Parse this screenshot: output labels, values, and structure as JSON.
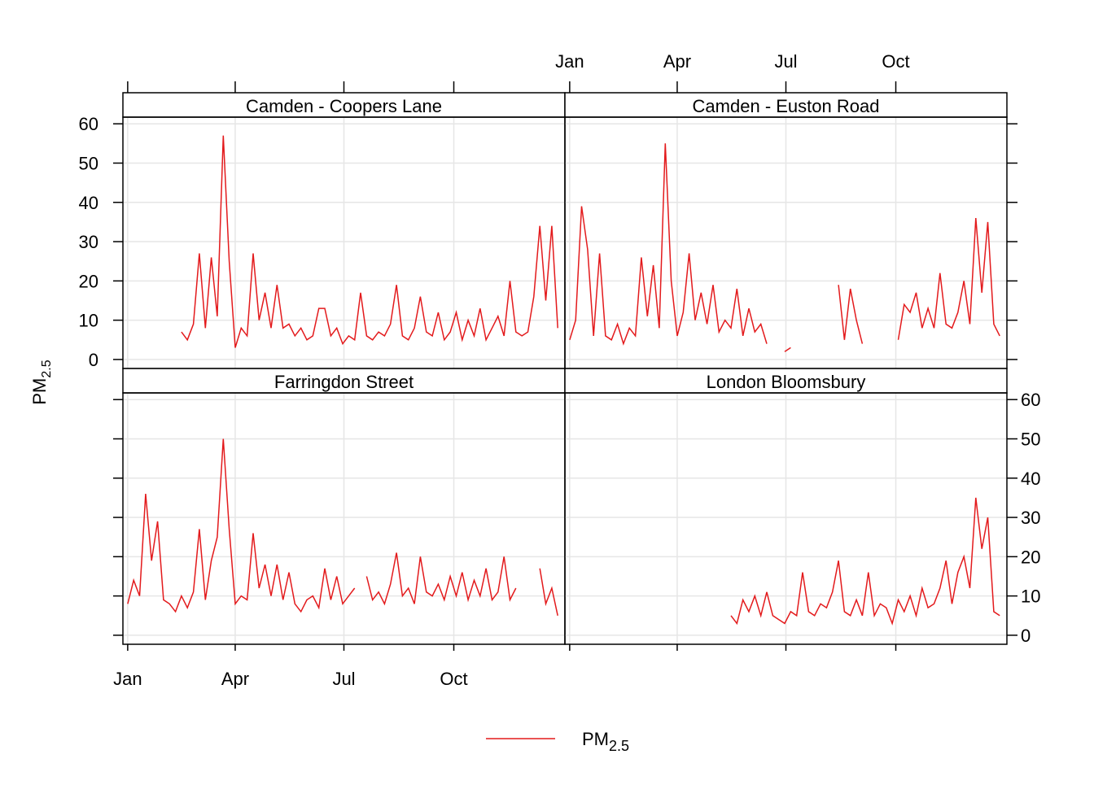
{
  "chart_data": {
    "type": "line",
    "ylabel": "PM",
    "ylabel_sub": "2.5",
    "series_name": "PM",
    "series_name_sub": "2.5",
    "color": "#e31a1c",
    "grid": true,
    "xlim": [
      -3,
      367
    ],
    "xticks": [
      {
        "value": 1,
        "label": "Jan"
      },
      {
        "value": 91,
        "label": "Apr"
      },
      {
        "value": 182,
        "label": "Jul"
      },
      {
        "value": 274,
        "label": "Oct"
      }
    ],
    "ylim": [
      -2.3,
      61.7
    ],
    "yticks": [
      0,
      10,
      20,
      30,
      40,
      50,
      60
    ],
    "x": [
      1,
      6,
      11,
      16,
      21,
      26,
      31,
      36,
      41,
      46,
      51,
      56,
      61,
      66,
      71,
      76,
      81,
      86,
      91,
      96,
      101,
      106,
      111,
      116,
      121,
      126,
      131,
      136,
      141,
      146,
      151,
      156,
      161,
      166,
      171,
      176,
      181,
      186,
      191,
      196,
      201,
      206,
      211,
      216,
      221,
      226,
      231,
      236,
      241,
      246,
      251,
      256,
      261,
      266,
      271,
      276,
      281,
      286,
      291,
      296,
      301,
      306,
      311,
      316,
      321,
      326,
      331,
      336,
      341,
      346,
      351,
      356,
      361
    ],
    "panels": [
      {
        "title": "Camden - Coopers Lane",
        "values": [
          null,
          null,
          null,
          null,
          null,
          null,
          null,
          null,
          null,
          7,
          5,
          9,
          27,
          8,
          26,
          11,
          57,
          25,
          3,
          8,
          6,
          27,
          10,
          17,
          8,
          19,
          8,
          9,
          6,
          8,
          5,
          6,
          13,
          13,
          6,
          8,
          4,
          6,
          5,
          17,
          6,
          5,
          7,
          6,
          9,
          19,
          6,
          5,
          8,
          16,
          7,
          6,
          12,
          5,
          7,
          12,
          5,
          10,
          6,
          13,
          5,
          8,
          11,
          6,
          20,
          7,
          6,
          7,
          16,
          34,
          15,
          34,
          8
        ]
      },
      {
        "title": "Camden - Euston Road",
        "values": [
          5,
          10,
          39,
          28,
          6,
          27,
          6,
          5,
          9,
          4,
          8,
          6,
          26,
          11,
          24,
          8,
          55,
          20,
          6,
          12,
          27,
          10,
          17,
          9,
          19,
          7,
          10,
          8,
          18,
          6,
          13,
          7,
          9,
          4,
          null,
          null,
          2,
          3,
          null,
          null,
          null,
          null,
          null,
          null,
          null,
          19,
          5,
          18,
          10,
          4,
          null,
          null,
          null,
          null,
          null,
          5,
          14,
          12,
          17,
          8,
          13,
          8,
          22,
          9,
          8,
          12,
          20,
          9,
          36,
          17,
          35,
          9,
          6
        ]
      },
      {
        "title": "Farringdon Street",
        "values": [
          8,
          14,
          10,
          36,
          19,
          29,
          9,
          8,
          6,
          10,
          7,
          11,
          27,
          9,
          19,
          25,
          50,
          27,
          8,
          10,
          9,
          26,
          12,
          18,
          10,
          18,
          9,
          16,
          8,
          6,
          9,
          10,
          7,
          17,
          9,
          15,
          8,
          10,
          12,
          null,
          15,
          9,
          11,
          8,
          13,
          21,
          10,
          12,
          8,
          20,
          11,
          10,
          13,
          9,
          15,
          10,
          16,
          9,
          14,
          10,
          17,
          9,
          11,
          20,
          9,
          12,
          null,
          null,
          null,
          17,
          8,
          12,
          5
        ]
      },
      {
        "title": "London Bloomsbury",
        "values": [
          null,
          null,
          null,
          null,
          null,
          null,
          null,
          null,
          null,
          null,
          null,
          null,
          null,
          null,
          null,
          null,
          null,
          null,
          null,
          null,
          null,
          null,
          null,
          null,
          null,
          null,
          null,
          5,
          3,
          9,
          6,
          10,
          5,
          11,
          5,
          4,
          3,
          6,
          5,
          16,
          6,
          5,
          8,
          7,
          11,
          19,
          6,
          5,
          9,
          5,
          16,
          5,
          8,
          7,
          3,
          9,
          6,
          10,
          5,
          12,
          7,
          8,
          12,
          19,
          8,
          16,
          20,
          12,
          35,
          22,
          30,
          6,
          5
        ]
      }
    ]
  }
}
